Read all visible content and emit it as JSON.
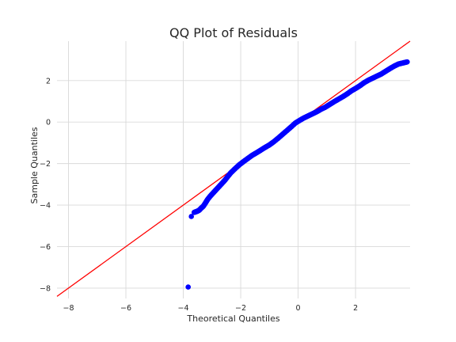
{
  "chart_data": {
    "type": "scatter",
    "title": "QQ Plot of Residuals",
    "xlabel": "Theoretical Quantiles",
    "ylabel": "Sample Quantiles",
    "xlim": [
      -8.4,
      3.9
    ],
    "ylim": [
      -8.5,
      3.9
    ],
    "xticks": [
      -8,
      -6,
      -4,
      -2,
      0,
      2
    ],
    "yticks": [
      -8,
      -6,
      -4,
      -2,
      0,
      2
    ],
    "x_tick_labels": [
      "−8",
      "−6",
      "−4",
      "−2",
      "0",
      "2"
    ],
    "y_tick_labels": [
      "−8",
      "−6",
      "−4",
      "−2",
      "0",
      "2"
    ],
    "grid": true,
    "colors": {
      "points": "#0000ff",
      "reference_line": "#ff0000"
    },
    "reference_line": {
      "slope": 1,
      "intercept": 0
    },
    "series": [
      {
        "points": [
          [
            -3.83,
            -7.95
          ],
          [
            -3.72,
            -4.55
          ],
          [
            -3.62,
            -4.35
          ],
          [
            -3.52,
            -4.3
          ],
          [
            -3.45,
            -4.25
          ],
          [
            -3.38,
            -4.15
          ],
          [
            -3.3,
            -4.05
          ],
          [
            -3.22,
            -3.88
          ],
          [
            -3.15,
            -3.72
          ],
          [
            -3.05,
            -3.55
          ],
          [
            -2.95,
            -3.4
          ],
          [
            -2.85,
            -3.25
          ],
          [
            -2.75,
            -3.1
          ],
          [
            -2.65,
            -2.95
          ],
          [
            -2.55,
            -2.8
          ],
          [
            -2.45,
            -2.62
          ],
          [
            -2.35,
            -2.45
          ],
          [
            -2.2,
            -2.25
          ],
          [
            -2.05,
            -2.06
          ],
          [
            -1.9,
            -1.9
          ],
          [
            -1.75,
            -1.75
          ],
          [
            -1.6,
            -1.6
          ],
          [
            -1.45,
            -1.48
          ],
          [
            -1.3,
            -1.35
          ],
          [
            -1.15,
            -1.22
          ],
          [
            -1.0,
            -1.1
          ],
          [
            -0.85,
            -0.95
          ],
          [
            -0.7,
            -0.78
          ],
          [
            -0.55,
            -0.6
          ],
          [
            -0.4,
            -0.42
          ],
          [
            -0.25,
            -0.24
          ],
          [
            -0.1,
            -0.05
          ],
          [
            0.05,
            0.08
          ],
          [
            0.2,
            0.2
          ],
          [
            0.35,
            0.3
          ],
          [
            0.5,
            0.4
          ],
          [
            0.65,
            0.5
          ],
          [
            0.8,
            0.62
          ],
          [
            0.95,
            0.72
          ],
          [
            1.1,
            0.85
          ],
          [
            1.25,
            0.98
          ],
          [
            1.4,
            1.1
          ],
          [
            1.55,
            1.22
          ],
          [
            1.7,
            1.35
          ],
          [
            1.85,
            1.5
          ],
          [
            2.0,
            1.62
          ],
          [
            2.15,
            1.75
          ],
          [
            2.3,
            1.9
          ],
          [
            2.45,
            2.02
          ],
          [
            2.6,
            2.12
          ],
          [
            2.75,
            2.22
          ],
          [
            2.9,
            2.32
          ],
          [
            3.05,
            2.45
          ],
          [
            3.2,
            2.58
          ],
          [
            3.35,
            2.7
          ],
          [
            3.5,
            2.8
          ],
          [
            3.65,
            2.85
          ],
          [
            3.8,
            2.9
          ]
        ]
      }
    ]
  }
}
